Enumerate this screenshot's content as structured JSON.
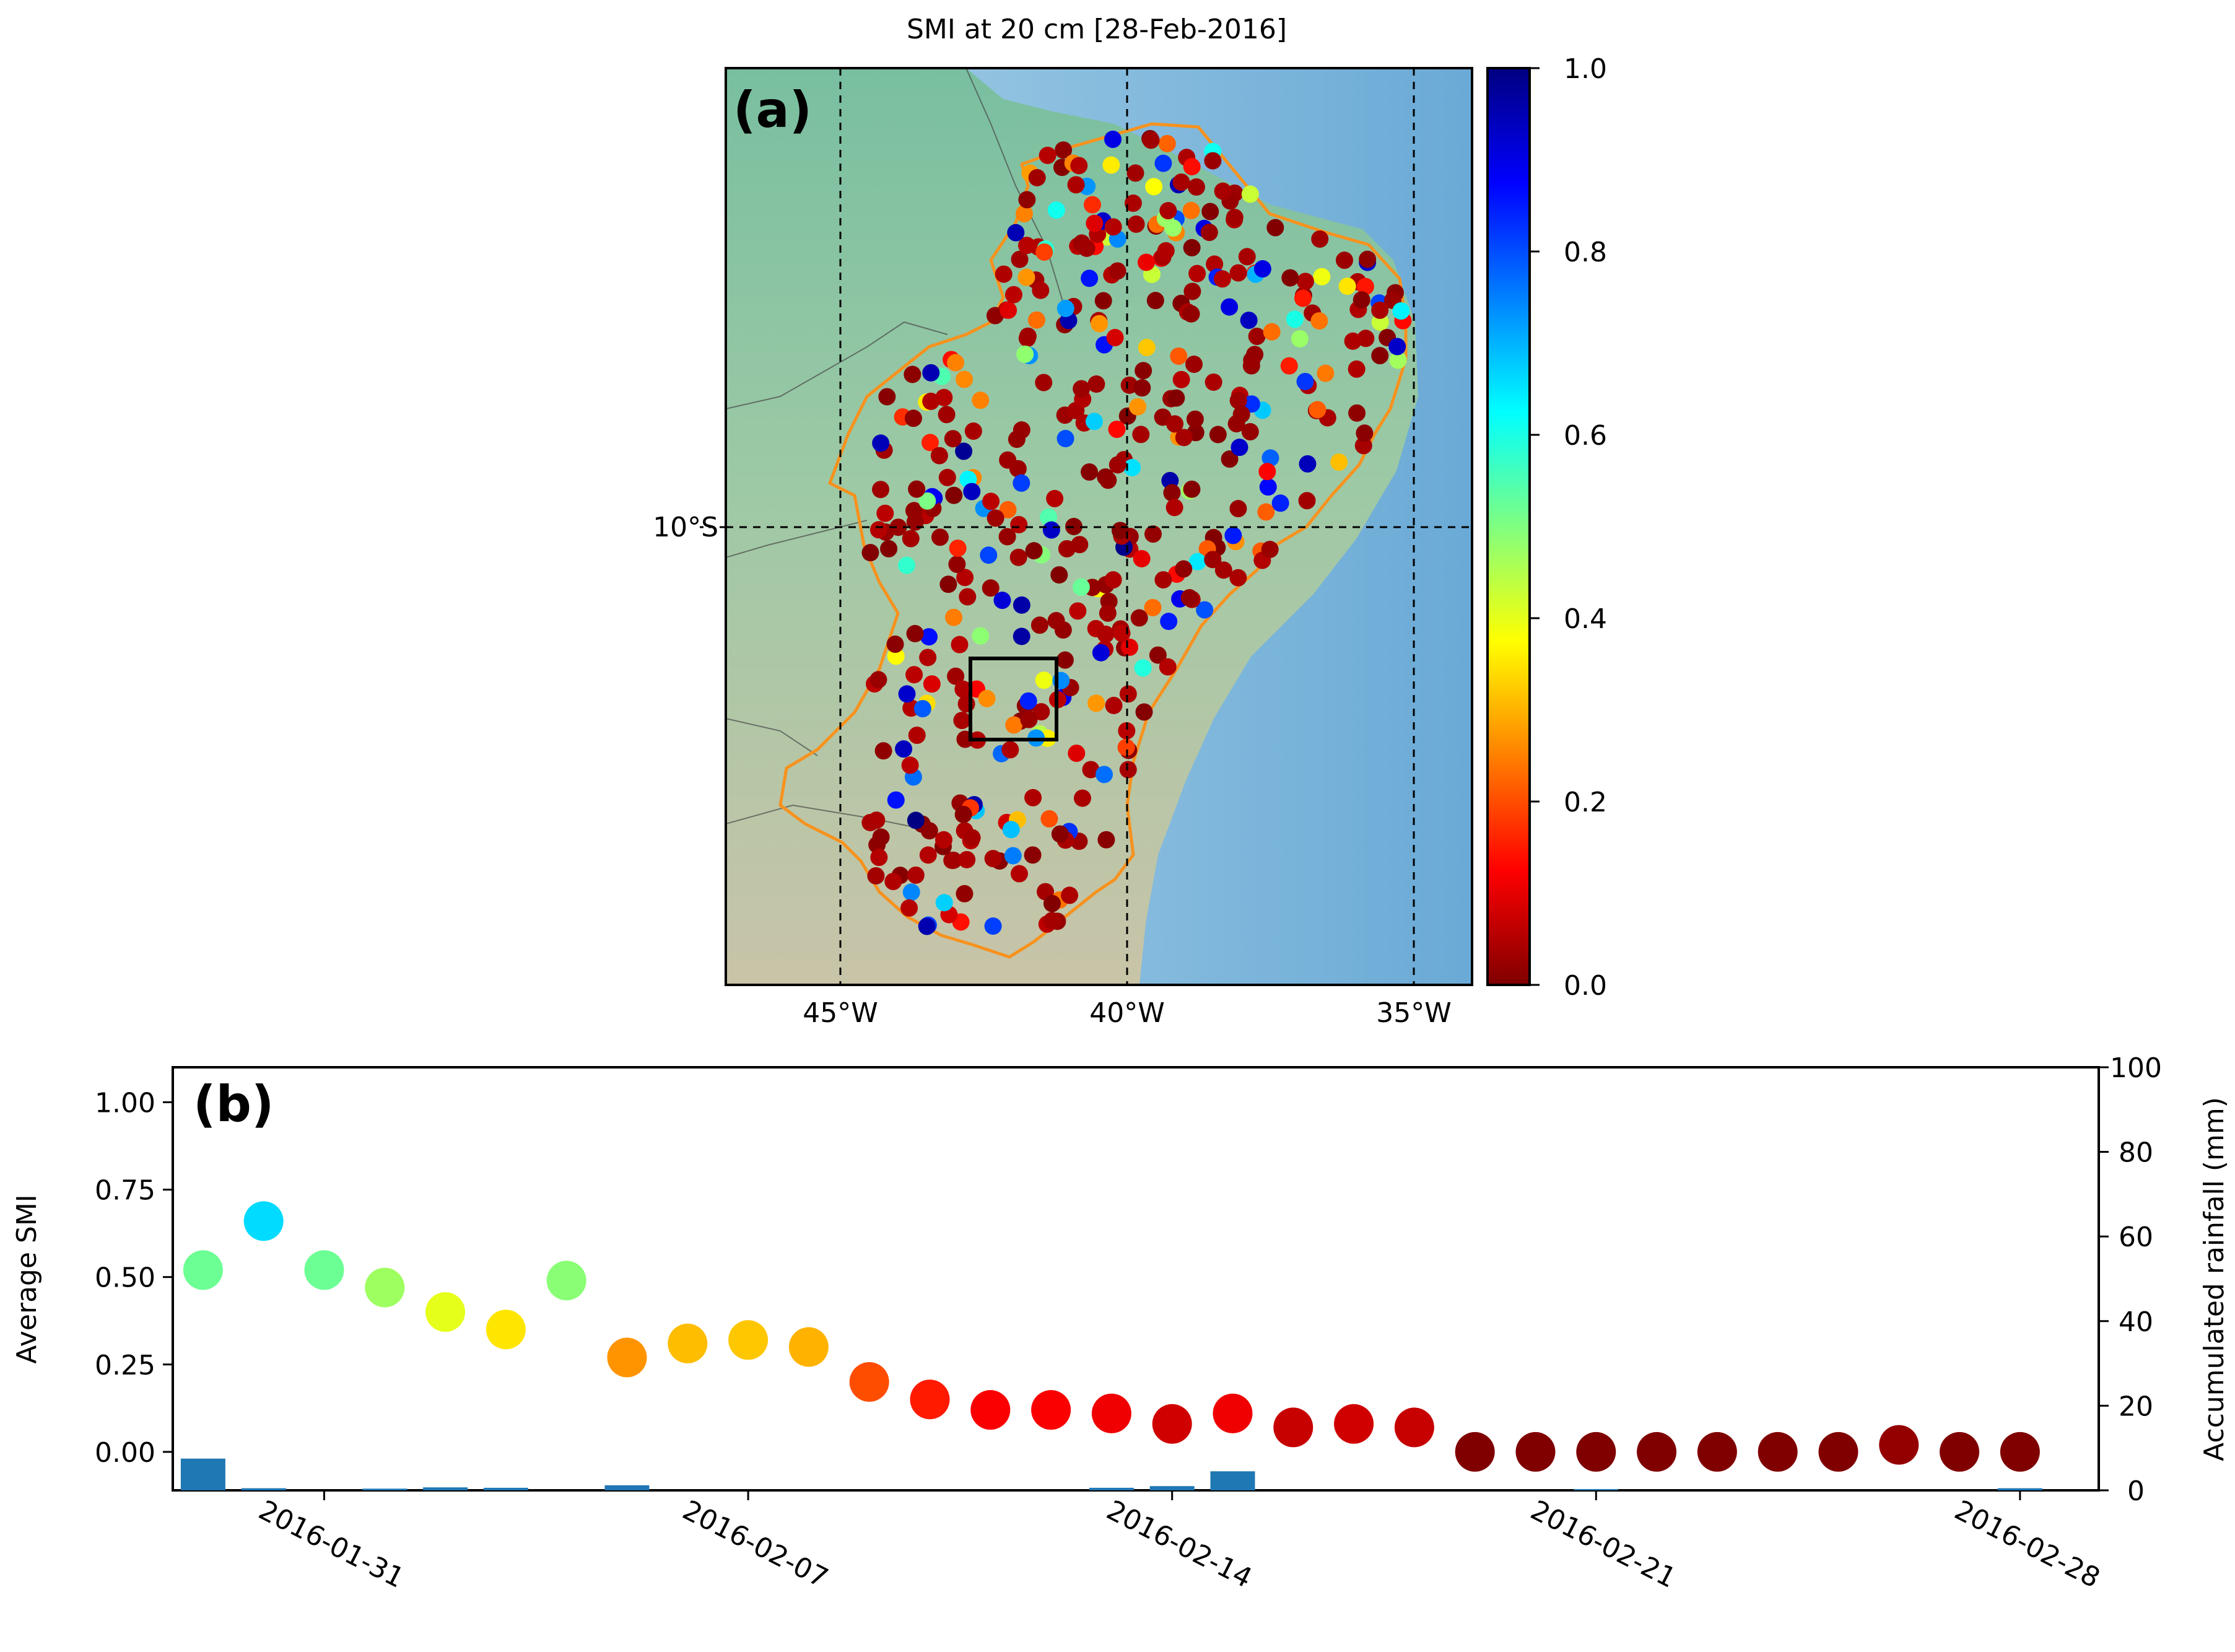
{
  "map_panel": {
    "panel_label": "(a)",
    "title": "SMI at 20 cm [28-Feb-2016]",
    "lon_labels": [
      "45°W",
      "40°W",
      "35°W"
    ],
    "lat_labels": [
      "10°S"
    ],
    "lon_range": [
      -47,
      -34
    ],
    "lat_range": [
      -18,
      -2
    ],
    "colorbar": {
      "ticks": [
        "0.0",
        "0.2",
        "0.4",
        "0.6",
        "0.8",
        "1.0"
      ],
      "range": [
        0,
        1
      ],
      "colors": [
        "#800000",
        "#ff0000",
        "#ff8000",
        "#ffff00",
        "#80ff80",
        "#00ffff",
        "#0080ff",
        "#0000ff",
        "#000080"
      ]
    },
    "outline_color": "#f7921e",
    "study_box": {
      "lon_min": -42.8,
      "lon_max": -41.3,
      "lat_min": -13.8,
      "lat_max": -12.3
    }
  },
  "chart_data": {
    "type": "scatter",
    "panel_label": "(b)",
    "title": "",
    "xlabel": "",
    "ylabel": "Average SMI",
    "ylabel_right": "Accumulated rainfall (mm)",
    "dates": [
      "2016-01-29",
      "2016-01-30",
      "2016-01-31",
      "2016-02-01",
      "2016-02-02",
      "2016-02-03",
      "2016-02-04",
      "2016-02-05",
      "2016-02-06",
      "2016-02-07",
      "2016-02-08",
      "2016-02-09",
      "2016-02-10",
      "2016-02-11",
      "2016-02-12",
      "2016-02-13",
      "2016-02-14",
      "2016-02-15",
      "2016-02-16",
      "2016-02-17",
      "2016-02-18",
      "2016-02-19",
      "2016-02-20",
      "2016-02-21",
      "2016-02-22",
      "2016-02-23",
      "2016-02-24",
      "2016-02-25",
      "2016-02-26",
      "2016-02-27",
      "2016-02-28"
    ],
    "x_tick_labels": [
      "2016-01-31",
      "2016-02-07",
      "2016-02-14",
      "2016-02-21",
      "2016-02-28"
    ],
    "x_tick_days": [
      2,
      9,
      16,
      23,
      30
    ],
    "xlim_days": [
      -0.5,
      31.3
    ],
    "series": [
      {
        "name": "Average SMI",
        "axis": "left",
        "days": [
          0,
          1,
          2,
          3,
          4,
          5,
          6,
          7,
          8,
          9,
          10,
          11,
          12,
          13,
          14,
          15,
          16,
          17,
          18,
          19,
          20,
          21,
          22,
          23,
          24,
          25,
          26,
          27,
          28,
          29,
          30
        ],
        "values": [
          0.52,
          0.66,
          0.52,
          0.47,
          0.4,
          0.35,
          0.49,
          0.27,
          0.31,
          0.32,
          0.3,
          0.2,
          0.15,
          0.12,
          0.12,
          0.11,
          0.08,
          0.11,
          0.07,
          0.08,
          0.07,
          0.0,
          0.0,
          0.0,
          0.0,
          0.0,
          0.0,
          0.0,
          0.02,
          0.0,
          0.0
        ]
      },
      {
        "name": "Accumulated rainfall",
        "axis": "right",
        "days": [
          0,
          1,
          3,
          4,
          5,
          7,
          15,
          16,
          17,
          23,
          30
        ],
        "values": [
          7.5,
          0.5,
          0.4,
          0.7,
          0.6,
          1.2,
          0.6,
          1.0,
          4.5,
          0.3,
          0.5
        ]
      }
    ],
    "ylim": [
      -0.11,
      1.1
    ],
    "yticks": [
      "0.00",
      "0.25",
      "0.50",
      "0.75",
      "1.00"
    ],
    "ylim_right": [
      0,
      100
    ],
    "yticks_right": [
      "0",
      "20",
      "40",
      "60",
      "80",
      "100"
    ],
    "bar_color": "#1f77b4"
  }
}
